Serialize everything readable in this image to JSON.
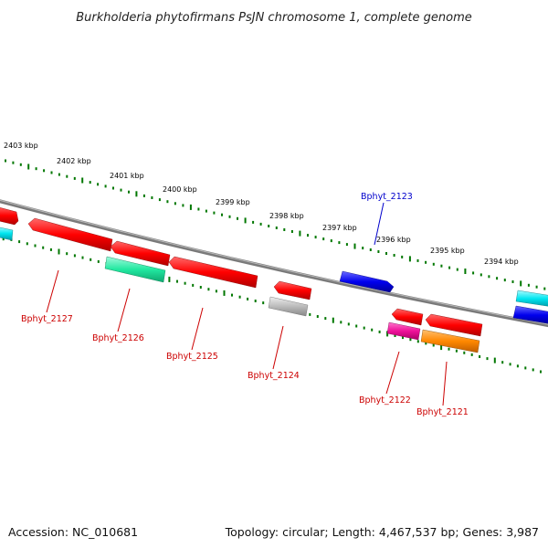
{
  "title": "Burkholderia phytofirmans PsJN chromosome 1, complete genome",
  "accession": "Accession: NC_010681",
  "summary": "Topology: circular; Length: 4,467,537 bp; Genes: 3,987",
  "scale_labels": [
    "2403 kbp",
    "2402 kbp",
    "2401 kbp",
    "2400 kbp",
    "2399 kbp",
    "2398 kbp",
    "2397 kbp",
    "2396 kbp",
    "2395 kbp",
    "2394 kbp"
  ],
  "genes": [
    {
      "id": "Bphyt_2127",
      "color": "#ff0000",
      "strand": "reverse"
    },
    {
      "id": "Bphyt_2126",
      "color": "#22e8a0",
      "strand": "reverse"
    },
    {
      "id": "Bphyt_2125",
      "color": "#ff0000",
      "strand": "reverse"
    },
    {
      "id": "Bphyt_2124",
      "color": "#ff0000",
      "strand": "reverse"
    },
    {
      "id": "Bphyt_2123",
      "color": "#0000ee",
      "strand": "forward"
    },
    {
      "id": "Bphyt_2122",
      "color": "#ff0000",
      "strand": "reverse"
    },
    {
      "id": "Bphyt_2121",
      "color": "#ff0000",
      "strand": "reverse"
    }
  ],
  "colors": {
    "backbone": "#777777",
    "scale_ticks": "#007700",
    "reverse_label": "#cc0000",
    "forward_label": "#0000cc",
    "magenta": "#ee1199",
    "orange": "#ff8800",
    "grey": "#bbbbbb",
    "cyan": "#00e6f0"
  }
}
